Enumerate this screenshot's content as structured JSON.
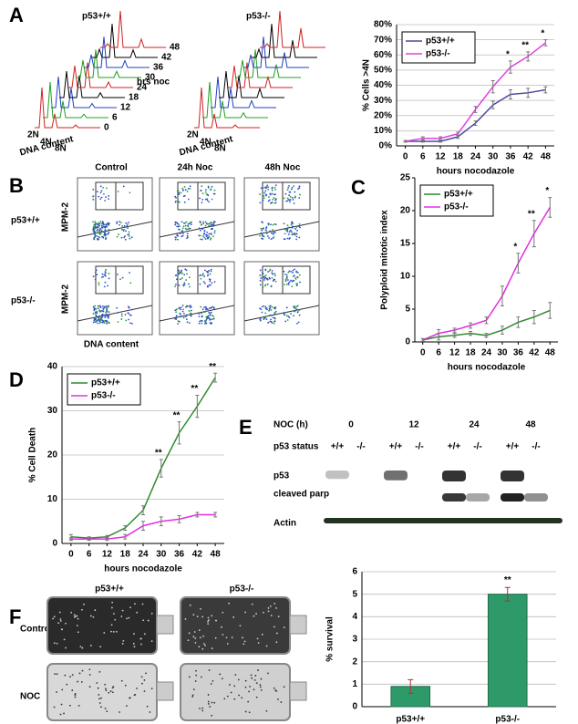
{
  "figure": {
    "panel_labels": [
      "A",
      "B",
      "C",
      "D",
      "E",
      "F"
    ],
    "panel_a": {
      "genotypes": [
        "p53+/+",
        "p53-/-"
      ],
      "x_label": "DNA content",
      "depth_label": "hrs noc",
      "ploidy_ticks": [
        "2N",
        "4N",
        "8N"
      ],
      "hours": [
        "0",
        "6",
        "12",
        "18",
        "24",
        "30",
        "36",
        "42",
        "48"
      ]
    },
    "panel_b": {
      "columns": [
        "Control",
        "24h Noc",
        "48h Noc"
      ],
      "rows": [
        "p53+/+",
        "p53-/-"
      ],
      "y_label": "MPM-2",
      "x_label": "DNA content"
    },
    "panel_e": {
      "noc_label": "NOC (h)",
      "noc_times": [
        "0",
        "12",
        "24",
        "48"
      ],
      "status_label": "p53 status",
      "statuses": [
        "+/+",
        "-/-",
        "+/+",
        "-/-",
        "+/+",
        "-/-",
        "+/+",
        "-/-"
      ],
      "bands": [
        "p53",
        "cleaved parp",
        "Actin"
      ]
    },
    "panel_f": {
      "genotypes": [
        "p53+/+",
        "p53-/-"
      ],
      "conditions": [
        "Control",
        "NOC"
      ]
    }
  },
  "chart_data": [
    {
      "type": "line",
      "y_label": "% Cells >4N",
      "x_label": "hours nocodazole",
      "x": [
        0,
        6,
        12,
        18,
        24,
        30,
        36,
        42,
        48
      ],
      "xlim": [
        -3,
        51
      ],
      "xticks": [
        0,
        6,
        12,
        18,
        24,
        30,
        36,
        42,
        48
      ],
      "ylim": [
        0,
        80
      ],
      "yticks": [
        {
          "value": 0,
          "label": "0%"
        },
        {
          "value": 10,
          "label": "10%"
        },
        {
          "value": 20,
          "label": "20%"
        },
        {
          "value": 30,
          "label": "30%"
        },
        {
          "value": 40,
          "label": "40%"
        },
        {
          "value": 50,
          "label": "50%"
        },
        {
          "value": 60,
          "label": "60%"
        },
        {
          "value": 70,
          "label": "70%"
        },
        {
          "value": 80,
          "label": "80%"
        }
      ],
      "grid": true,
      "legend": "upper left",
      "series": [
        {
          "name": "p53+/+",
          "color": "#4a4a9c",
          "values": [
            3,
            3,
            3,
            6,
            15,
            27,
            34,
            35,
            37
          ],
          "errors": [
            0.5,
            0.5,
            0.5,
            1,
            1.5,
            2.5,
            3,
            3,
            2
          ]
        },
        {
          "name": "p53-/-",
          "color": "#e040e0",
          "values": [
            3,
            5,
            5,
            8,
            24,
            39,
            52,
            59,
            68
          ],
          "errors": [
            0.5,
            1,
            1,
            1,
            2,
            4,
            4,
            3,
            2
          ]
        }
      ],
      "annotations": [
        null,
        null,
        null,
        null,
        null,
        null,
        "*",
        "**",
        "*"
      ]
    },
    {
      "type": "line",
      "y_label": "Polyploid mitotic index",
      "x_label": "hours nocodazole",
      "x": [
        0,
        6,
        12,
        18,
        24,
        30,
        36,
        42,
        48
      ],
      "xlim": [
        -3,
        51
      ],
      "xticks": [
        0,
        6,
        12,
        18,
        24,
        30,
        36,
        42,
        48
      ],
      "ylim": [
        0,
        25
      ],
      "yticks": [
        0,
        5,
        10,
        15,
        20,
        25
      ],
      "grid": false,
      "legend": "upper left",
      "series": [
        {
          "name": "p53+/+",
          "color": "#2e8b2e",
          "values": [
            0.3,
            0.8,
            1.0,
            1.3,
            1.0,
            1.8,
            3.0,
            3.8,
            4.8
          ],
          "errors": [
            0.2,
            0.5,
            0.3,
            0.3,
            0.3,
            0.6,
            0.8,
            1,
            1.2
          ]
        },
        {
          "name": "p53-/-",
          "color": "#e030e0",
          "values": [
            0.3,
            1.3,
            1.8,
            2.5,
            3.3,
            7,
            12,
            16.5,
            20.5
          ],
          "errors": [
            0.2,
            0.6,
            0.3,
            0.4,
            0.5,
            1.5,
            1.5,
            2,
            1.5
          ]
        }
      ],
      "annotations": [
        null,
        null,
        null,
        null,
        null,
        null,
        "*",
        "**",
        "*"
      ]
    },
    {
      "type": "line",
      "y_label": "% Cell Death",
      "x_label": "hours nocodazole",
      "x": [
        0,
        6,
        12,
        18,
        24,
        30,
        36,
        42,
        48
      ],
      "xlim": [
        -3,
        51
      ],
      "xticks": [
        0,
        6,
        12,
        18,
        24,
        30,
        36,
        42,
        48
      ],
      "ylim": [
        0,
        40
      ],
      "yticks": [
        0,
        10,
        20,
        30,
        40
      ],
      "grid": true,
      "legend": "upper left",
      "series": [
        {
          "name": "p53+/+",
          "color": "#2e8b2e",
          "values": [
            1.5,
            1.2,
            1.5,
            3.5,
            7.5,
            17,
            25,
            31,
            37.5
          ],
          "errors": [
            0.5,
            0.3,
            0.3,
            0.5,
            1,
            2,
            2.5,
            2.5,
            1
          ]
        },
        {
          "name": "p53-/-",
          "color": "#e030e0",
          "values": [
            1,
            1,
            1,
            1.5,
            4,
            5,
            5.5,
            6.5,
            6.5
          ],
          "errors": [
            0.3,
            0.3,
            0.3,
            0.5,
            1,
            1,
            0.8,
            0.5,
            0.5
          ]
        }
      ],
      "annotations": [
        null,
        null,
        null,
        null,
        null,
        "**",
        "**",
        "**",
        "**"
      ]
    },
    {
      "type": "bar",
      "y_label": "% survival",
      "categories": [
        "p53+/+",
        "p53-/-"
      ],
      "values": [
        0.9,
        5.0
      ],
      "errors": [
        0.3,
        0.3
      ],
      "color": "#2e9a6a",
      "ylim": [
        0,
        6
      ],
      "yticks": [
        0,
        1,
        2,
        3,
        4,
        5,
        6
      ],
      "grid": true,
      "annotations": [
        null,
        "**"
      ]
    }
  ]
}
